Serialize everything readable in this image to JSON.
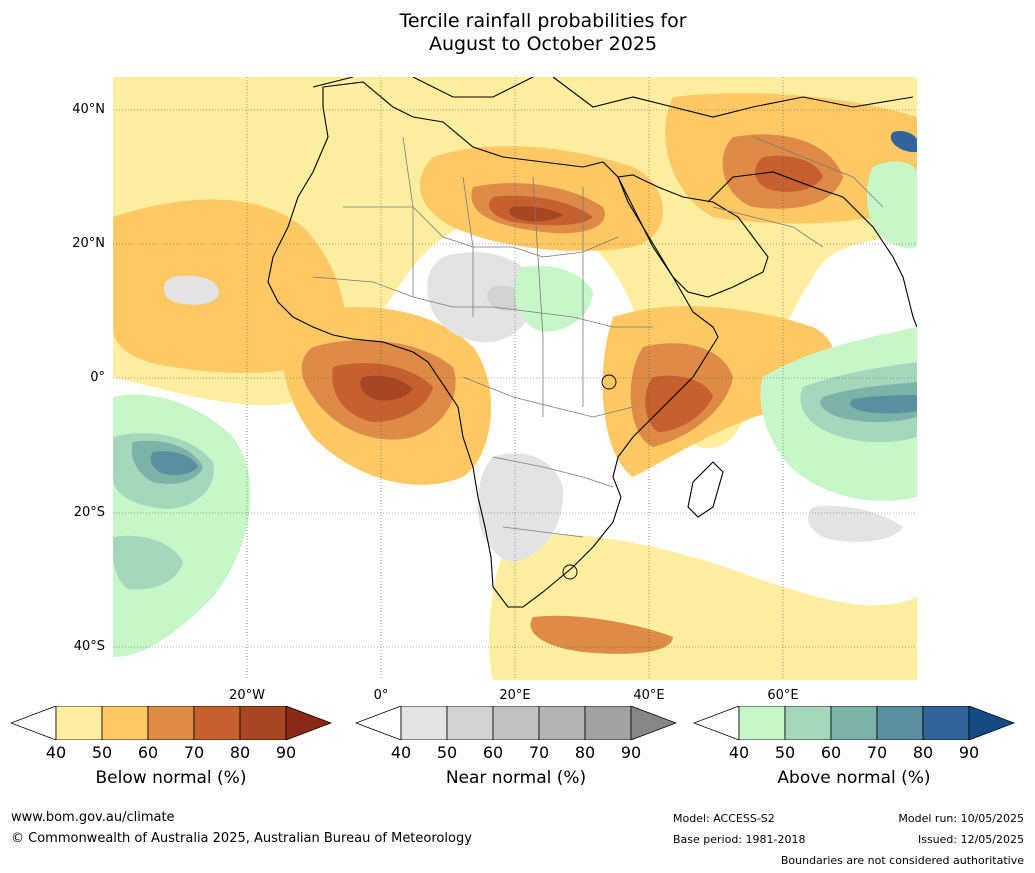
{
  "title_line1": "Tercile rainfall probabilities for",
  "title_line2": "August to October 2025",
  "map": {
    "lat_labels": [
      "40°N",
      "20°N",
      "0°",
      "20°S",
      "40°S"
    ],
    "lon_labels": [
      "20°W",
      "0°",
      "20°E",
      "40°E",
      "60°E"
    ],
    "colors": {
      "below": [
        "#ffeda0",
        "#fec965",
        "#dd8b46",
        "#c6602f",
        "#a84523",
        "#8a2a16"
      ],
      "near": [
        "#e3e3e3",
        "#d2d2d2",
        "#c2c2c2",
        "#b3b3b3",
        "#a2a2a2",
        "#878787"
      ],
      "above": [
        "#c7f7c9",
        "#a4d7bb",
        "#7db2a8",
        "#5a8fa0",
        "#31659a",
        "#144a81"
      ]
    }
  },
  "colorbars": [
    {
      "label": "Below normal (%)",
      "ticks": [
        "40",
        "50",
        "60",
        "70",
        "80",
        "90"
      ]
    },
    {
      "label": "Near normal (%)",
      "ticks": [
        "40",
        "50",
        "60",
        "70",
        "80",
        "90"
      ]
    },
    {
      "label": "Above normal (%)",
      "ticks": [
        "40",
        "50",
        "60",
        "70",
        "80",
        "90"
      ]
    }
  ],
  "footer": {
    "website": "www.bom.gov.au/climate",
    "copyright": "© Commonwealth of Australia 2025, Australian Bureau of Meteorology",
    "model": "Model: ACCESS-S2",
    "base_period": "Base period: 1981-2018",
    "model_run": "Model run: 10/05/2025",
    "issued": "Issued: 12/05/2025",
    "disclaimer": "Boundaries are not considered authoritative"
  }
}
